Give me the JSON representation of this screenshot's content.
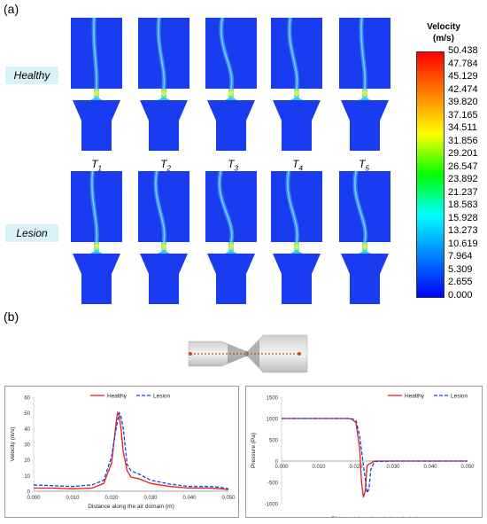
{
  "panel_a_label": "(a)",
  "panel_b_label": "(b)",
  "rows": [
    {
      "label": "Healthy",
      "jets": [
        0.15,
        0.3,
        0.55,
        0.4,
        0.2
      ]
    },
    {
      "label": "Lesion",
      "jets": [
        0.25,
        0.45,
        0.65,
        0.5,
        0.55
      ]
    }
  ],
  "time_labels": [
    {
      "base": "T",
      "sub": "1"
    },
    {
      "base": "T",
      "sub": "2"
    },
    {
      "base": "T",
      "sub": "3"
    },
    {
      "base": "T",
      "sub": "4"
    },
    {
      "base": "T",
      "sub": "5"
    }
  ],
  "colorbar": {
    "title_line1": "Velocity",
    "title_line2": "(m/s)",
    "ticks": [
      "50.438",
      "47.784",
      "45.129",
      "42.474",
      "39.820",
      "37.165",
      "34.511",
      "31.856",
      "29.201",
      "26.547",
      "23.892",
      "21.237",
      "18.583",
      "15.928",
      "13.273",
      "10.619",
      "7.964",
      "5.309",
      "2.655",
      "0.000"
    ],
    "colors": [
      "#ff0000",
      "#ff8000",
      "#ffff00",
      "#00ff00",
      "#00ffff",
      "#0080ff",
      "#0000ff"
    ]
  },
  "colors": {
    "healthy": "#e0201c",
    "lesion": "#1f3fd6",
    "flow_base": "#1a3cf0"
  },
  "chart_data": [
    {
      "type": "line",
      "xlabel": "Distance along the air domain   (m)",
      "ylabel": "Velocity (m/s)",
      "xlim": [
        0,
        0.05
      ],
      "ylim": [
        0,
        60
      ],
      "xticks": [
        "0.000",
        "0.010",
        "0.020",
        "0.030",
        "0.040",
        "0.050"
      ],
      "yticks": [
        "0",
        "10",
        "20",
        "30",
        "40",
        "50",
        "60"
      ],
      "legend_position": "top-center",
      "series": [
        {
          "name": "Healthy",
          "style": "solid",
          "x": [
            0,
            0.005,
            0.01,
            0.015,
            0.018,
            0.02,
            0.021,
            0.0215,
            0.022,
            0.0225,
            0.023,
            0.024,
            0.025,
            0.027,
            0.03,
            0.035,
            0.04,
            0.045,
            0.048,
            0.05
          ],
          "y": [
            2,
            2,
            1.5,
            2,
            5,
            18,
            40,
            50,
            48,
            38,
            25,
            13,
            9,
            8,
            5,
            3,
            2,
            2,
            1.5,
            1
          ]
        },
        {
          "name": "Lesion",
          "style": "dashed",
          "x": [
            0,
            0.005,
            0.01,
            0.015,
            0.018,
            0.02,
            0.021,
            0.022,
            0.0225,
            0.023,
            0.024,
            0.025,
            0.027,
            0.03,
            0.035,
            0.04,
            0.045,
            0.048,
            0.05
          ],
          "y": [
            4,
            3.5,
            3,
            4,
            7,
            22,
            38,
            50,
            47,
            40,
            17,
            13,
            11,
            7,
            4.5,
            3,
            3,
            2.5,
            1.5
          ]
        }
      ]
    },
    {
      "type": "line",
      "xlabel": "Distance along the air domain   (m)",
      "ylabel": "Pressure (Pa)",
      "xlim": [
        0,
        0.05
      ],
      "ylim": [
        -1000,
        1500
      ],
      "xticks": [
        "0.000",
        "0.010",
        "0.020",
        "0.030",
        "0.040",
        "0.050"
      ],
      "yticks": [
        "-1000",
        "-500",
        "0",
        "500",
        "1000",
        "1500"
      ],
      "legend_position": "top-right",
      "series": [
        {
          "name": "Healthy",
          "style": "solid",
          "x": [
            0,
            0.01,
            0.018,
            0.019,
            0.02,
            0.021,
            0.0215,
            0.022,
            0.0225,
            0.023,
            0.025,
            0.03,
            0.04,
            0.05
          ],
          "y": [
            1000,
            1000,
            1000,
            980,
            900,
            300,
            -500,
            -850,
            -700,
            -100,
            0,
            0,
            0,
            0
          ]
        },
        {
          "name": "Lesion",
          "style": "dashed",
          "x": [
            0,
            0.01,
            0.018,
            0.019,
            0.02,
            0.021,
            0.022,
            0.023,
            0.0235,
            0.024,
            0.025,
            0.03,
            0.04,
            0.05
          ],
          "y": [
            1000,
            1000,
            1000,
            990,
            950,
            600,
            -100,
            -750,
            -650,
            -200,
            -10,
            0,
            0,
            0
          ]
        }
      ]
    }
  ]
}
